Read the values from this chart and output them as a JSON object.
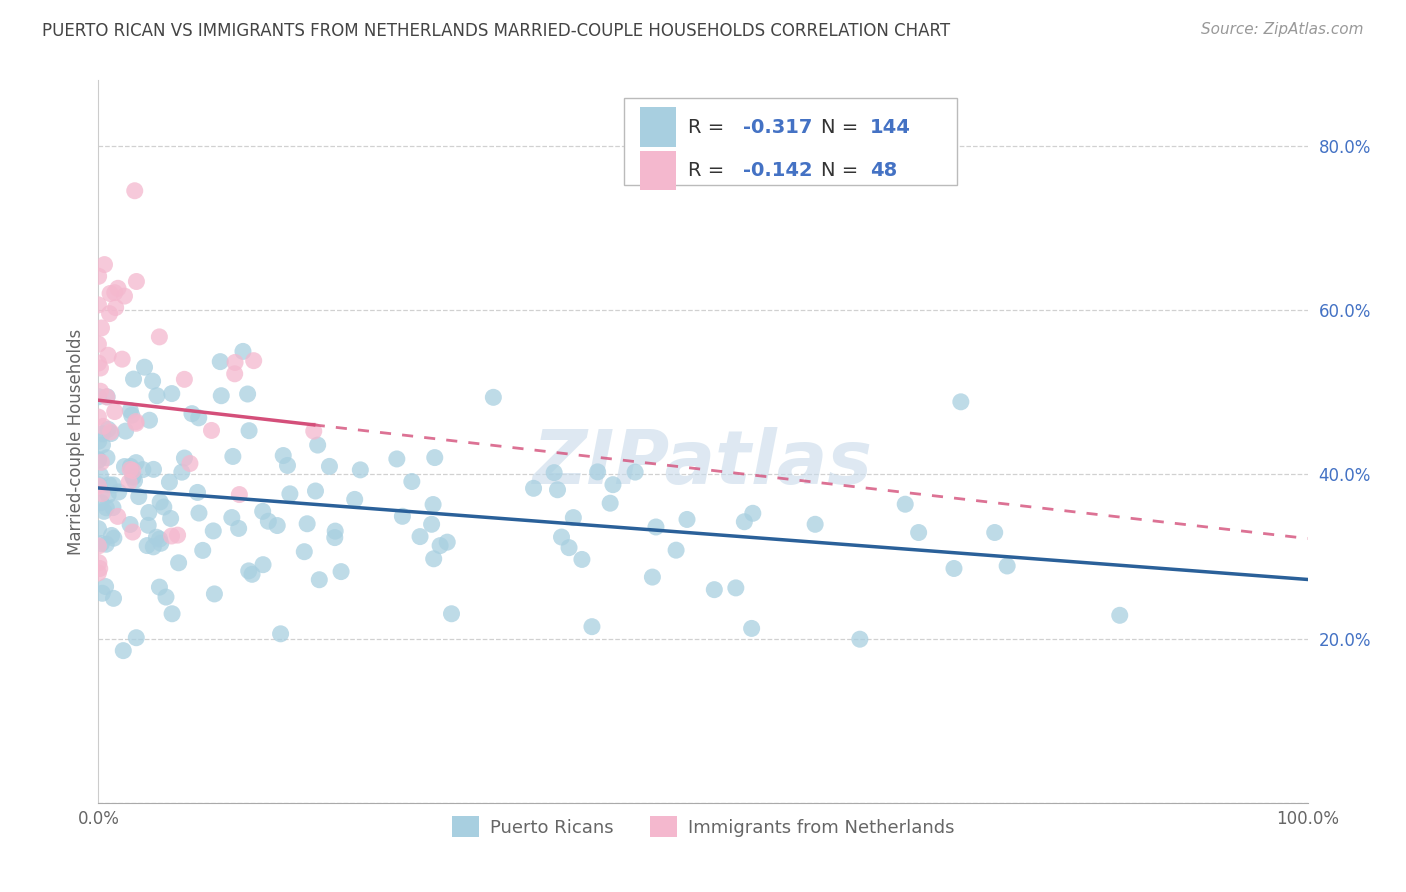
{
  "title": "PUERTO RICAN VS IMMIGRANTS FROM NETHERLANDS MARRIED-COUPLE HOUSEHOLDS CORRELATION CHART",
  "source": "Source: ZipAtlas.com",
  "ylabel": "Married-couple Households",
  "legend_labels": [
    "Puerto Ricans",
    "Immigrants from Netherlands"
  ],
  "R_blue": -0.317,
  "N_blue": 144,
  "R_pink": -0.142,
  "N_pink": 48,
  "blue_color": "#a8cfe0",
  "pink_color": "#f4b8ce",
  "blue_line_color": "#2a6099",
  "pink_line_color": "#d44f7a",
  "background_color": "#ffffff",
  "grid_color": "#cccccc",
  "title_color": "#444444",
  "axis_label_color": "#666666",
  "watermark_text": "ZIPatlas",
  "seed_blue": 42,
  "seed_pink": 7,
  "xlim": [
    0,
    1
  ],
  "ylim": [
    0,
    0.88
  ]
}
